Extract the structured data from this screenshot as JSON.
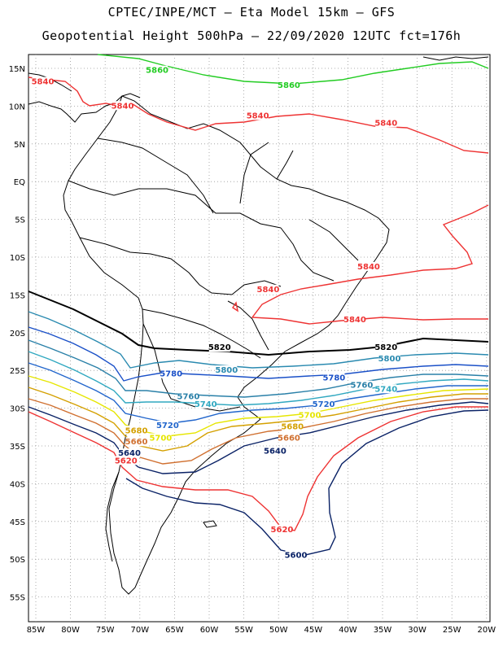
{
  "title_line1": "CPTEC/INPE/MCT –  Eta Model 15km – GFS",
  "title_line2": "Geopotential Height 500hPa – 22/09/2020 12UTC fct=176h",
  "lat_labels": [
    "15N",
    "10N",
    "5N",
    "EQ",
    "5S",
    "10S",
    "15S",
    "20S",
    "25S",
    "30S",
    "35S",
    "40S",
    "45S",
    "50S",
    "55S"
  ],
  "lon_labels": [
    "85W",
    "80W",
    "75W",
    "70W",
    "65W",
    "60W",
    "55W",
    "50W",
    "45W",
    "40W",
    "35W",
    "30W",
    "25W",
    "20W"
  ],
  "lat_values": [
    15,
    10,
    5,
    0,
    -5,
    -10,
    -15,
    -20,
    -25,
    -30,
    -35,
    -40,
    -45,
    -50,
    -55
  ],
  "lon_values": [
    -85,
    -80,
    -75,
    -70,
    -65,
    -60,
    -55,
    -50,
    -45,
    -40,
    -35,
    -30,
    -25,
    -20
  ],
  "contour_colors": {
    "5860": "#22cc22",
    "5840": "#ee3333",
    "5820": "#000000",
    "5800": "#2a8ab0",
    "5780": "#1a50c8",
    "5760": "#2a80a8",
    "5740": "#30a8c0",
    "5720": "#2266cc",
    "5700": "#e6e600",
    "5680": "#d4a000",
    "5660": "#d07030",
    "5640": "#0a2266",
    "5620": "#ee3333",
    "5600": "#0a2266"
  },
  "contour_labels": [
    {
      "text": "5860",
      "lon": -67.5,
      "lat": 14.5,
      "color": "5860"
    },
    {
      "text": "5860",
      "lon": -48.5,
      "lat": 12.5,
      "color": "5860"
    },
    {
      "text": "5840",
      "lon": -84.0,
      "lat": 13.0,
      "color": "5840"
    },
    {
      "text": "5840",
      "lon": -72.5,
      "lat": 9.8,
      "color": "5840"
    },
    {
      "text": "5840",
      "lon": -53.0,
      "lat": 8.5,
      "color": "5840"
    },
    {
      "text": "5840",
      "lon": -34.5,
      "lat": 7.5,
      "color": "5840"
    },
    {
      "text": "5840",
      "lon": -37.0,
      "lat": -11.5,
      "color": "5840"
    },
    {
      "text": "5840",
      "lon": -51.5,
      "lat": -14.5,
      "color": "5840"
    },
    {
      "text": "5840",
      "lon": -39.0,
      "lat": -18.5,
      "color": "5840"
    },
    {
      "text": "5820",
      "lon": -58.5,
      "lat": -22.2,
      "color": "5820"
    },
    {
      "text": "5820",
      "lon": -34.5,
      "lat": -22.2,
      "color": "5820"
    },
    {
      "text": "5800",
      "lon": -57.5,
      "lat": -25.2,
      "color": "5800"
    },
    {
      "text": "5800",
      "lon": -34.0,
      "lat": -23.7,
      "color": "5800"
    },
    {
      "text": "5780",
      "lon": -65.5,
      "lat": -25.7,
      "color": "5780"
    },
    {
      "text": "5780",
      "lon": -42.0,
      "lat": -26.2,
      "color": "5780"
    },
    {
      "text": "5760",
      "lon": -63.0,
      "lat": -28.7,
      "color": "5760"
    },
    {
      "text": "5760",
      "lon": -38.0,
      "lat": -27.2,
      "color": "5760"
    },
    {
      "text": "5740",
      "lon": -60.5,
      "lat": -29.7,
      "color": "5740"
    },
    {
      "text": "5740",
      "lon": -34.5,
      "lat": -27.7,
      "color": "5740"
    },
    {
      "text": "5720",
      "lon": -66.0,
      "lat": -32.5,
      "color": "5720"
    },
    {
      "text": "5720",
      "lon": -43.5,
      "lat": -29.7,
      "color": "5720"
    },
    {
      "text": "5700",
      "lon": -67.0,
      "lat": -34.2,
      "color": "5700"
    },
    {
      "text": "5700",
      "lon": -45.5,
      "lat": -31.2,
      "color": "5700"
    },
    {
      "text": "5680",
      "lon": -70.5,
      "lat": -33.2,
      "color": "5680"
    },
    {
      "text": "5680",
      "lon": -48.0,
      "lat": -32.7,
      "color": "5680"
    },
    {
      "text": "5660",
      "lon": -70.5,
      "lat": -34.7,
      "color": "5660"
    },
    {
      "text": "5660",
      "lon": -48.5,
      "lat": -34.2,
      "color": "5660"
    },
    {
      "text": "5640",
      "lon": -71.5,
      "lat": -36.2,
      "color": "5640"
    },
    {
      "text": "5640",
      "lon": -50.5,
      "lat": -35.9,
      "color": "5640"
    },
    {
      "text": "5620",
      "lon": -72.0,
      "lat": -37.2,
      "color": "5620"
    },
    {
      "text": "5620",
      "lon": -49.5,
      "lat": -46.3,
      "color": "5620"
    },
    {
      "text": "5600",
      "lon": -47.5,
      "lat": -49.7,
      "color": "5600"
    }
  ]
}
